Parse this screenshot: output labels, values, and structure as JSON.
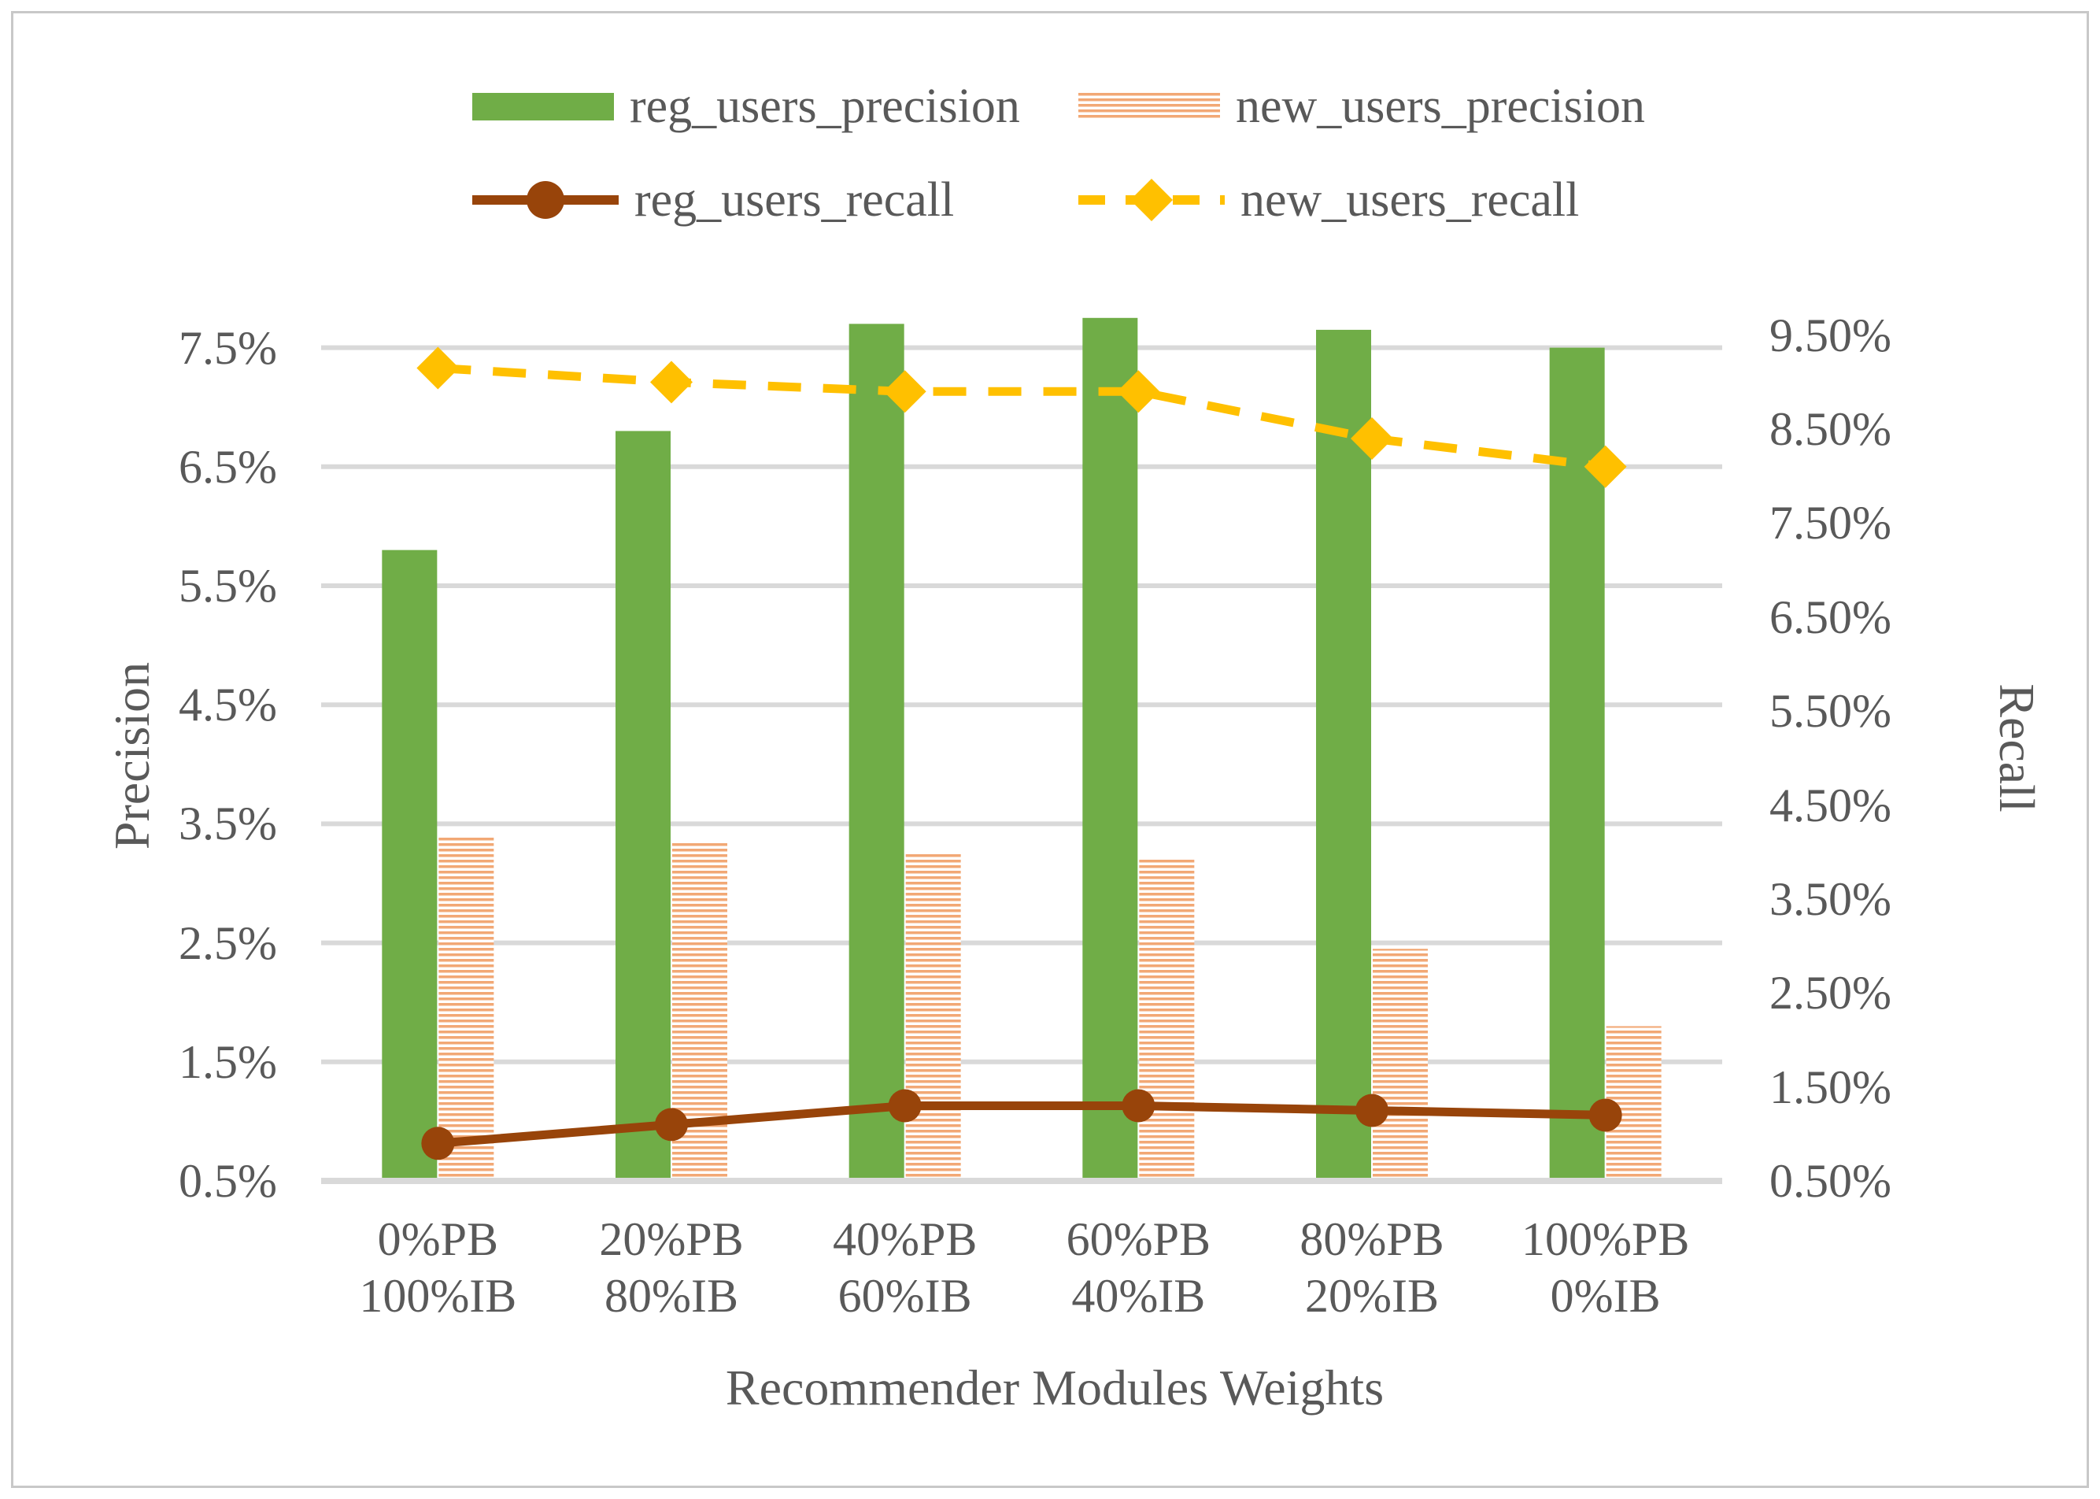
{
  "chart_data": {
    "type": "combo",
    "title": "",
    "categories": [
      [
        "0%PB",
        "100%IB"
      ],
      [
        "20%PB",
        "80%IB"
      ],
      [
        "40%PB",
        "60%IB"
      ],
      [
        "60%PB",
        "40%IB"
      ],
      [
        "80%PB",
        "20%IB"
      ],
      [
        "100%PB",
        "0%IB"
      ]
    ],
    "x_axis": {
      "title": "Recommender Modules Weights"
    },
    "left_axis": {
      "title": "Precision",
      "min": 0.5,
      "max": 8.0,
      "tick_values": [
        0.5,
        1.5,
        2.5,
        3.5,
        4.5,
        5.5,
        6.5,
        7.5
      ],
      "tick_labels": [
        "0.5%",
        "1.5%",
        "2.5%",
        "3.5%",
        "4.5%",
        "5.5%",
        "6.5%",
        "7.5%"
      ]
    },
    "right_axis": {
      "title": "Recall",
      "min": 0.5,
      "max": 10.0,
      "tick_values": [
        0.5,
        1.5,
        2.5,
        3.5,
        4.5,
        5.5,
        6.5,
        7.5,
        8.5,
        9.5
      ],
      "tick_labels": [
        "0.50%",
        "1.50%",
        "2.50%",
        "3.50%",
        "4.50%",
        "5.50%",
        "6.50%",
        "7.50%",
        "8.50%",
        "9.50%"
      ]
    },
    "series": [
      {
        "name": "reg_users_precision",
        "type": "bar",
        "axis": "left",
        "color": "#70AD47",
        "pattern": "solid",
        "values": [
          5.8,
          6.8,
          7.7,
          7.75,
          7.65,
          7.5
        ]
      },
      {
        "name": "new_users_precision",
        "type": "bar",
        "axis": "left",
        "color": "#F2A875",
        "pattern": "horizontal-stripes",
        "values": [
          3.4,
          3.35,
          3.25,
          3.2,
          2.45,
          1.8
        ]
      },
      {
        "name": "reg_users_recall",
        "type": "line",
        "axis": "right",
        "color": "#98440A",
        "marker": "circle",
        "dashed": false,
        "values": [
          0.9,
          1.1,
          1.3,
          1.3,
          1.25,
          1.2
        ]
      },
      {
        "name": "new_users_recall",
        "type": "line",
        "axis": "right",
        "color": "#FFC000",
        "marker": "diamond",
        "dashed": true,
        "values": [
          9.15,
          9.0,
          8.9,
          8.9,
          8.4,
          8.1
        ]
      }
    ],
    "legend_position": "top",
    "grid": true,
    "style": {
      "grid_color": "#D9D9D9",
      "baseline_color": "#D9D9D9",
      "text_color": "#595959",
      "background": "#FFFFFF",
      "border_color": "#C8C8C8"
    }
  }
}
